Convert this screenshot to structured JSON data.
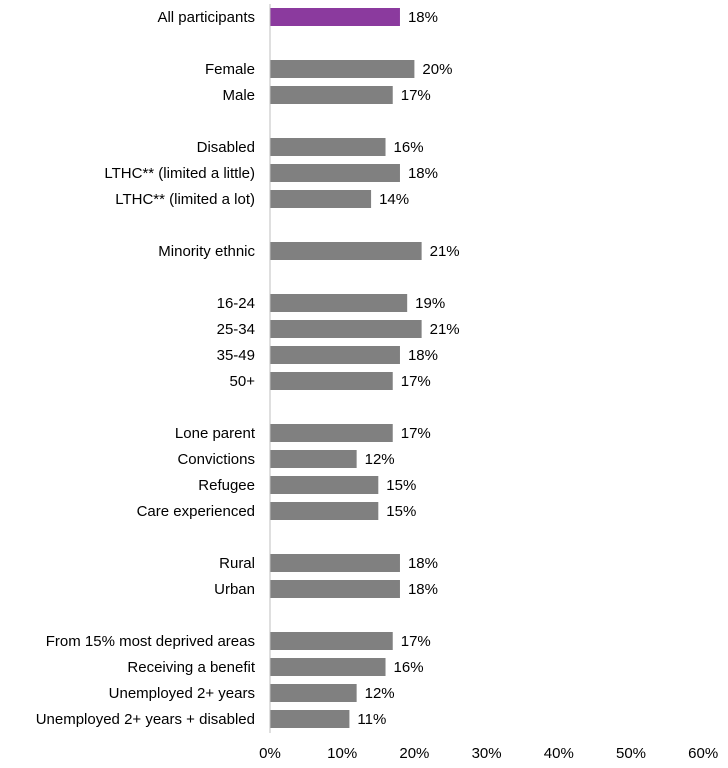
{
  "chart_data": {
    "type": "bar",
    "orientation": "horizontal",
    "categories": [
      "All participants",
      "Female",
      "Male",
      "Disabled",
      "LTHC** (limited a little)",
      "LTHC** (limited a lot)",
      "Minority ethnic",
      "16-24",
      "25-34",
      "35-49",
      "50+",
      "Lone parent",
      "Convictions",
      "Refugee",
      "Care experienced",
      "Rural",
      "Urban",
      "From 15% most deprived areas",
      "Receiving a benefit",
      "Unemployed 2+ years",
      "Unemployed 2+ years + disabled"
    ],
    "groups": [
      0,
      1,
      1,
      2,
      2,
      2,
      3,
      4,
      4,
      4,
      4,
      5,
      5,
      5,
      5,
      6,
      6,
      7,
      7,
      7,
      7
    ],
    "values": [
      18,
      20,
      17,
      16,
      18,
      14,
      21,
      19,
      21,
      18,
      17,
      17,
      12,
      15,
      15,
      18,
      18,
      17,
      16,
      12,
      11
    ],
    "value_labels": [
      "18%",
      "20%",
      "17%",
      "16%",
      "18%",
      "14%",
      "21%",
      "19%",
      "21%",
      "18%",
      "17%",
      "17%",
      "12%",
      "15%",
      "15%",
      "18%",
      "18%",
      "17%",
      "16%",
      "12%",
      "11%"
    ],
    "xlim": [
      0,
      60
    ],
    "xticks": [
      0,
      10,
      20,
      30,
      40,
      50,
      60
    ],
    "xtick_labels": [
      "0%",
      "10%",
      "20%",
      "30%",
      "40%",
      "50%",
      "60%"
    ],
    "title": "",
    "xlabel": "",
    "ylabel": "",
    "grid": false,
    "legend": "none",
    "colors": {
      "highlight": "#8b3a9e",
      "bar": "#808080",
      "axis": "#bfbfbf",
      "text": "#000000"
    },
    "highlight_index": 0
  }
}
